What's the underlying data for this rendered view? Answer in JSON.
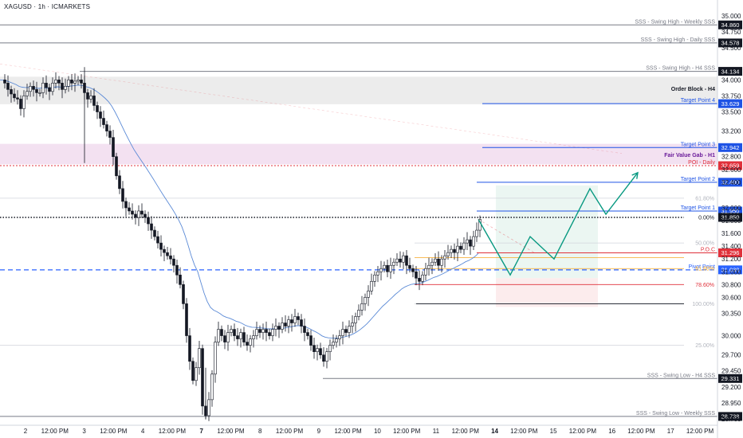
{
  "header": {
    "ticker": "XAGUSD · 1h · ICMARKETS"
  },
  "colors": {
    "up_body": "#ffffff",
    "down_body": "#131722",
    "wick": "#131722",
    "ema": "#5b8ad6",
    "blue": "#1e53e5",
    "red": "#e0313b",
    "gray": "#787b86",
    "green_path": "#089981",
    "orderblock_fill": "#ececec",
    "fvg_fill": "#f3e1f1",
    "pivot": "#2962ff",
    "poc": "#e0313b",
    "orange": "#f5a623"
  },
  "chart_data": {
    "type": "candlestick",
    "symbol": "XAGUSD",
    "timeframe": "1h",
    "exchange": "ICMARKETS",
    "ylim": [
      28.6,
      35.1
    ],
    "y_ticks": [
      "35.000",
      "34.750",
      "34.500",
      "34.000",
      "33.750",
      "33.500",
      "33.200",
      "32.800",
      "32.600",
      "32.400",
      "32.000",
      "31.800",
      "31.600",
      "31.400",
      "31.200",
      "31.000",
      "30.800",
      "30.600",
      "30.350",
      "30.000",
      "29.700",
      "29.450",
      "29.200",
      "28.950",
      "28.700"
    ],
    "x_ticks": [
      "2",
      "12:00 PM",
      "3",
      "12:00 PM",
      "4",
      "12:00 PM",
      "7",
      "12:00 PM",
      "8",
      "12:00 PM",
      "9",
      "12:00 PM",
      "10",
      "12:00 PM",
      "11",
      "12:00 PM",
      "14",
      "12:00 PM",
      "15",
      "12:00 PM",
      "16",
      "12:00 PM",
      "17",
      "12:00 PM"
    ],
    "x_tick_bold": [
      "7",
      "14"
    ],
    "candles_close_path": [
      [
        0,
        34.0
      ],
      [
        4,
        33.95
      ],
      [
        8,
        33.85
      ],
      [
        12,
        33.78
      ],
      [
        16,
        33.72
      ],
      [
        20,
        33.7
      ],
      [
        24,
        33.55
      ],
      [
        28,
        33.75
      ],
      [
        32,
        33.82
      ],
      [
        36,
        33.9
      ],
      [
        40,
        33.85
      ],
      [
        44,
        33.8
      ],
      [
        48,
        33.8
      ],
      [
        52,
        33.95
      ],
      [
        56,
        33.88
      ],
      [
        60,
        33.82
      ],
      [
        64,
        33.95
      ],
      [
        68,
        34.0
      ],
      [
        72,
        33.95
      ],
      [
        76,
        33.85
      ],
      [
        80,
        33.9
      ],
      [
        84,
        34.0
      ],
      [
        88,
        33.95
      ],
      [
        92,
        33.98
      ],
      [
        96,
        34.0
      ],
      [
        100,
        33.95
      ],
      [
        104,
        33.8
      ],
      [
        108,
        33.7
      ],
      [
        112,
        33.75
      ],
      [
        116,
        33.6
      ],
      [
        120,
        33.5
      ],
      [
        124,
        33.4
      ],
      [
        128,
        33.3
      ],
      [
        132,
        33.2
      ],
      [
        136,
        33.1
      ],
      [
        140,
        32.8
      ],
      [
        144,
        32.5
      ],
      [
        148,
        32.3
      ],
      [
        152,
        32.1
      ],
      [
        156,
        32.0
      ],
      [
        160,
        31.95
      ],
      [
        164,
        31.9
      ],
      [
        168,
        31.85
      ],
      [
        172,
        31.95
      ],
      [
        176,
        31.9
      ],
      [
        180,
        31.85
      ],
      [
        184,
        31.75
      ],
      [
        188,
        31.65
      ],
      [
        192,
        31.55
      ],
      [
        196,
        31.45
      ],
      [
        200,
        31.35
      ],
      [
        204,
        31.3
      ],
      [
        208,
        31.25
      ],
      [
        212,
        31.2
      ],
      [
        216,
        31.1
      ],
      [
        220,
        30.95
      ],
      [
        224,
        30.8
      ],
      [
        228,
        30.5
      ],
      [
        232,
        30.0
      ],
      [
        236,
        29.6
      ],
      [
        240,
        29.3
      ],
      [
        244,
        29.5
      ],
      [
        248,
        29.8
      ],
      [
        252,
        28.9
      ],
      [
        256,
        28.75
      ],
      [
        260,
        29.0
      ],
      [
        264,
        29.4
      ],
      [
        268,
        29.9
      ],
      [
        272,
        30.1
      ],
      [
        276,
        30.0
      ],
      [
        280,
        29.9
      ],
      [
        284,
        30.05
      ],
      [
        288,
        30.1
      ],
      [
        292,
        30.0
      ],
      [
        296,
        29.95
      ],
      [
        300,
        30.05
      ],
      [
        304,
        29.9
      ],
      [
        308,
        29.85
      ],
      [
        312,
        29.95
      ],
      [
        316,
        30.0
      ],
      [
        320,
        30.1
      ],
      [
        324,
        30.05
      ],
      [
        328,
        30.1
      ],
      [
        332,
        30.05
      ],
      [
        336,
        30.0
      ],
      [
        340,
        30.1
      ],
      [
        344,
        30.15
      ],
      [
        348,
        30.1
      ],
      [
        352,
        30.2
      ],
      [
        356,
        30.15
      ],
      [
        360,
        30.25
      ],
      [
        364,
        30.2
      ],
      [
        368,
        30.3
      ],
      [
        372,
        30.25
      ],
      [
        376,
        30.15
      ],
      [
        380,
        30.05
      ],
      [
        384,
        30.0
      ],
      [
        388,
        29.85
      ],
      [
        392,
        29.75
      ],
      [
        396,
        29.8
      ],
      [
        400,
        29.7
      ],
      [
        404,
        29.6
      ],
      [
        408,
        29.75
      ],
      [
        412,
        29.85
      ],
      [
        416,
        29.9
      ],
      [
        420,
        29.95
      ],
      [
        424,
        30.0
      ],
      [
        428,
        30.1
      ],
      [
        432,
        30.05
      ],
      [
        436,
        30.15
      ],
      [
        440,
        30.2
      ],
      [
        444,
        30.3
      ],
      [
        448,
        30.4
      ],
      [
        452,
        30.5
      ],
      [
        456,
        30.6
      ],
      [
        460,
        30.7
      ],
      [
        464,
        30.85
      ],
      [
        468,
        30.95
      ],
      [
        472,
        31.0
      ],
      [
        476,
        31.05
      ],
      [
        480,
        31.1
      ],
      [
        484,
        31.0
      ],
      [
        488,
        31.1
      ],
      [
        492,
        31.15
      ],
      [
        496,
        31.2
      ],
      [
        500,
        31.15
      ],
      [
        504,
        31.25
      ],
      [
        508,
        31.1
      ],
      [
        512,
        31.05
      ],
      [
        516,
        31.0
      ],
      [
        520,
        30.9
      ],
      [
        524,
        30.85
      ],
      [
        528,
        30.95
      ],
      [
        532,
        31.05
      ],
      [
        536,
        31.1
      ],
      [
        540,
        31.15
      ],
      [
        544,
        31.2
      ],
      [
        548,
        31.1
      ],
      [
        552,
        31.2
      ],
      [
        556,
        31.25
      ],
      [
        560,
        31.3
      ],
      [
        564,
        31.35
      ],
      [
        568,
        31.3
      ],
      [
        572,
        31.4
      ],
      [
        576,
        31.35
      ],
      [
        580,
        31.45
      ],
      [
        584,
        31.5
      ],
      [
        588,
        31.4
      ],
      [
        592,
        31.55
      ],
      [
        596,
        31.65
      ],
      [
        600,
        31.82
      ]
    ],
    "levels": [
      {
        "label": "SSS - Swing High - Weekly SSS",
        "value": "34.860",
        "color": "#787b86",
        "style": "solid"
      },
      {
        "label": "SSS - Swing High - Daily SSS",
        "value": "34.578",
        "color": "#787b86",
        "style": "solid"
      },
      {
        "label": "SSS - Swing High - H4 SSS",
        "value": "34.134",
        "color": "#787b86",
        "style": "solid"
      },
      {
        "label": "Order Block - H4",
        "value": "",
        "color": "#131722",
        "style": "zone"
      },
      {
        "label": "Target Point 4",
        "value": "33.629",
        "color": "#1e53e5",
        "style": "solid"
      },
      {
        "label": "Target Point 3",
        "value": "32.942",
        "color": "#1e53e5",
        "style": "solid"
      },
      {
        "label": "Fair Value Gab - H1",
        "value": "",
        "color": "#9c27b0",
        "style": "zone"
      },
      {
        "label": "POI - Daily",
        "value": "32.659",
        "color": "#e0313b",
        "style": "dotted"
      },
      {
        "label": "Target Point 2",
        "value": "32.400",
        "color": "#1e53e5",
        "style": "solid"
      },
      {
        "label": "Target Point 1",
        "value": "31.950",
        "color": "#1e53e5",
        "style": "solid"
      },
      {
        "label": "P.O.C",
        "value": "31.296",
        "color": "#e0313b",
        "style": "solid"
      },
      {
        "label": "Pivot Point",
        "value": "31.030",
        "color": "#2962ff",
        "style": "dashed"
      },
      {
        "label": "SSS - Swing Low - H4 SSS",
        "value": "29.331",
        "color": "#787b86",
        "style": "solid"
      },
      {
        "label": "SSS - Swing Low - Weekly SSS",
        "value": "28.738",
        "color": "#787b86",
        "style": "solid"
      }
    ],
    "fib": [
      {
        "label": "0.00%",
        "value": "31.850"
      },
      {
        "label": "61.80%",
        "value": "32.150"
      },
      {
        "label": "50.00%",
        "value": "31.450"
      },
      {
        "label": "61.80%",
        "value": "31.050"
      },
      {
        "label": "78.60%",
        "value": "30.800"
      },
      {
        "label": "100.00%",
        "value": "30.500"
      },
      {
        "label": "25.00%",
        "value": "29.850"
      }
    ],
    "projection_path": [
      [
        600,
        31.82
      ],
      [
        640,
        30.95
      ],
      [
        665,
        31.55
      ],
      [
        695,
        31.2
      ],
      [
        740,
        32.3
      ],
      [
        760,
        31.9
      ],
      [
        800,
        32.55
      ]
    ],
    "current_price": "31.850"
  }
}
